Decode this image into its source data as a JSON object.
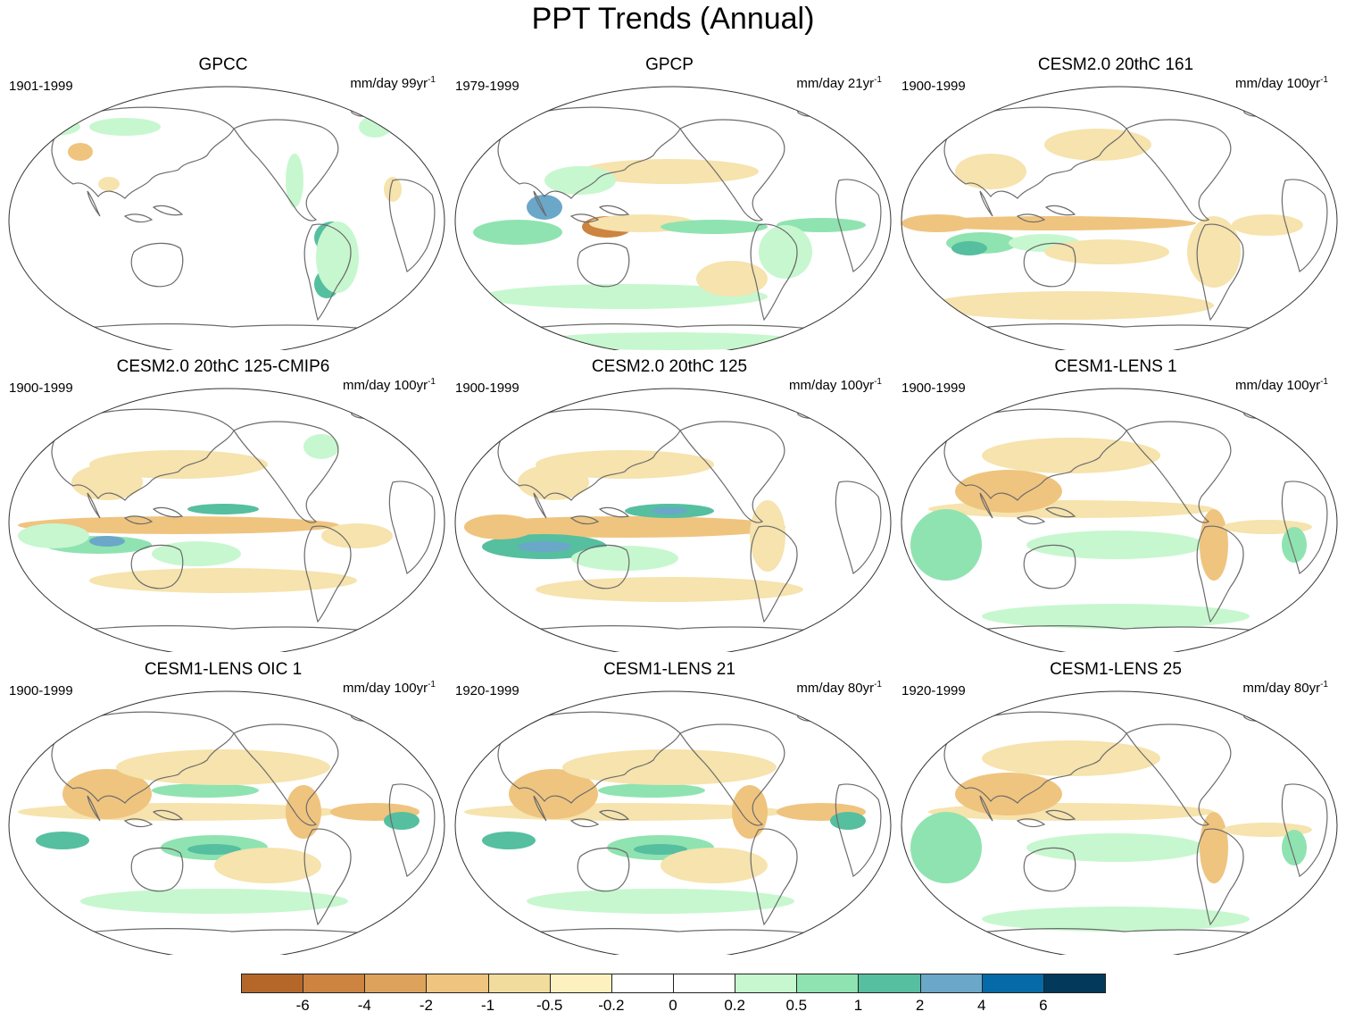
{
  "title": "PPT Trends (Annual)",
  "panels": [
    {
      "title": "GPCC",
      "period": "1901-1999",
      "units_base": "mm/day 99yr",
      "units_exp": "-1",
      "pattern": "gpcc"
    },
    {
      "title": "GPCP",
      "period": "1979-1999",
      "units_base": "mm/day 21yr",
      "units_exp": "-1",
      "pattern": "gpcp"
    },
    {
      "title": "CESM2.0 20thC 161",
      "period": "1900-1999",
      "units_base": "mm/day 100yr",
      "units_exp": "-1",
      "pattern": "model_dry_eq"
    },
    {
      "title": "CESM2.0 20thC 125-CMIP6",
      "period": "1900-1999",
      "units_base": "mm/day 100yr",
      "units_exp": "-1",
      "pattern": "model_wet_band"
    },
    {
      "title": "CESM2.0 20thC 125",
      "period": "1900-1999",
      "units_base": "mm/day 100yr",
      "units_exp": "-1",
      "pattern": "model_wet_band_strong"
    },
    {
      "title": "CESM1-LENS 1",
      "period": "1900-1999",
      "units_base": "mm/day 100yr",
      "units_exp": "-1",
      "pattern": "lens"
    },
    {
      "title": "CESM1-LENS OIC 1",
      "period": "1900-1999",
      "units_base": "mm/day 100yr",
      "units_exp": "-1",
      "pattern": "lens_oic"
    },
    {
      "title": "CESM1-LENS 21",
      "period": "1920-1999",
      "units_base": "mm/day 80yr",
      "units_exp": "-1",
      "pattern": "lens_oic"
    },
    {
      "title": "CESM1-LENS 25",
      "period": "1920-1999",
      "units_base": "mm/day 80yr",
      "units_exp": "-1",
      "pattern": "lens"
    }
  ],
  "colorbar": {
    "labels": [
      "-6",
      "-4",
      "-2",
      "-1",
      "-0.5",
      "-0.2",
      "0",
      "0.2",
      "0.5",
      "1",
      "2",
      "4",
      "6"
    ],
    "colors": [
      "#b5672a",
      "#cc8440",
      "#dda35d",
      "#efc47f",
      "#f1dc9e",
      "#fdf1c0",
      "#ffffff",
      "#ffffff",
      "#c7f7cf",
      "#8fe3b0",
      "#55bf9f",
      "#6ba7c9",
      "#066aa8",
      "#033a5c"
    ]
  },
  "palette": {
    "dry_strong": "#cc8440",
    "dry_mid": "#efc47f",
    "dry_light": "#f6e3ad",
    "wet_light": "#c7f7cf",
    "wet_mid": "#8fe3b0",
    "wet_strong": "#55bf9f",
    "wet_blue": "#6ba7c9",
    "coast": "#6b6b6b"
  }
}
